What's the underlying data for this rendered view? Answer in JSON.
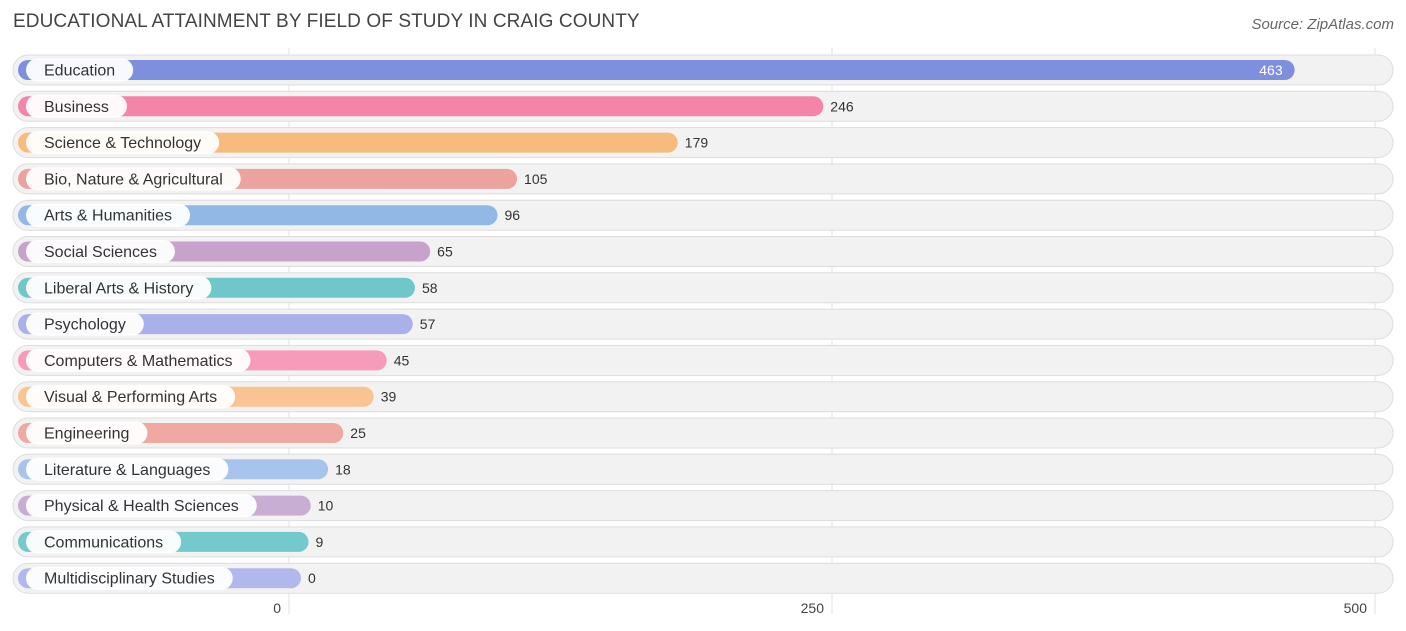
{
  "chart_data": {
    "type": "bar",
    "orientation": "horizontal",
    "title": "EDUCATIONAL ATTAINMENT BY FIELD OF STUDY IN CRAIG COUNTY",
    "source": "Source: ZipAtlas.com",
    "categories": [
      "Education",
      "Business",
      "Science & Technology",
      "Bio, Nature & Agricultural",
      "Arts & Humanities",
      "Social Sciences",
      "Liberal Arts & History",
      "Psychology",
      "Computers & Mathematics",
      "Visual & Performing Arts",
      "Engineering",
      "Literature & Languages",
      "Physical & Health Sciences",
      "Communications",
      "Multidisciplinary Studies"
    ],
    "values": [
      463,
      246,
      179,
      105,
      96,
      65,
      58,
      57,
      45,
      39,
      25,
      18,
      10,
      9,
      0
    ],
    "colors": [
      "#7f8fe0",
      "#f484a8",
      "#f8bb7e",
      "#eca39d",
      "#92b8e6",
      "#c7a3cc",
      "#6fc7cc",
      "#aab1e9",
      "#f79bba",
      "#f9c394",
      "#f0a9a2",
      "#a6c4ec",
      "#c8aed2",
      "#74c9cc",
      "#b3b8ec"
    ],
    "xlim": [
      0,
      500
    ],
    "xticks": [
      0,
      250,
      500
    ],
    "grid": true
  }
}
